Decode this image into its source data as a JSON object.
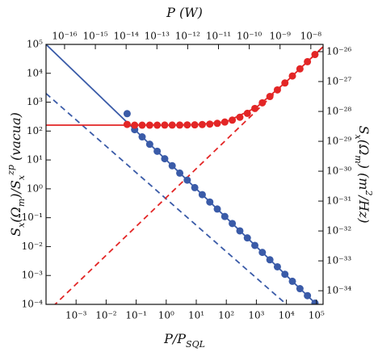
{
  "chart_data": {
    "type": "scatter",
    "log_x": true,
    "log_y": true,
    "xlabel": [
      {
        "text": "P/P"
      },
      {
        "text": "SQL",
        "shift": "sub"
      }
    ],
    "ylabel": [
      {
        "text": "S"
      },
      {
        "text": "x",
        "shift": "sub"
      },
      {
        "text": "(Ω"
      },
      {
        "text": "m",
        "shift": "sub"
      },
      {
        "text": ")/S"
      },
      {
        "text": "x",
        "shift": "sub"
      },
      {
        "text": "zp",
        "shift": "super"
      },
      {
        "text": " (vacua)"
      }
    ],
    "x2label": [
      {
        "text": "P (W)"
      }
    ],
    "y2label": [
      {
        "text": "S"
      },
      {
        "text": "x",
        "shift": "sub"
      },
      {
        "text": "(Ω"
      },
      {
        "text": "m",
        "shift": "sub"
      },
      {
        "text": ") (m"
      },
      {
        "text": "2",
        "shift": "super"
      },
      {
        "text": "/Hz)"
      }
    ],
    "xlim": [
      0.0001,
      166000
    ],
    "ylim": [
      0.0001,
      100000
    ],
    "x2lim": [
      2.5e-17,
      2.5e-08
    ],
    "y2lim": [
      3.5e-35,
      1.75e-26
    ],
    "xticks": [
      {
        "value": 0.001,
        "label": "10⁻³"
      },
      {
        "value": 0.01,
        "label": "10⁻²"
      },
      {
        "value": 0.1,
        "label": "10⁻¹"
      },
      {
        "value": 1,
        "label": "10⁰"
      },
      {
        "value": 10,
        "label": "10¹"
      },
      {
        "value": 100,
        "label": "10²"
      },
      {
        "value": 1000,
        "label": "10³"
      },
      {
        "value": 10000,
        "label": "10⁴"
      },
      {
        "value": 100000,
        "label": "10⁵"
      }
    ],
    "yticks": [
      {
        "value": 0.0001,
        "label": "10⁻⁴"
      },
      {
        "value": 0.001,
        "label": "10⁻³"
      },
      {
        "value": 0.01,
        "label": "10⁻²"
      },
      {
        "value": 0.1,
        "label": "10⁻¹"
      },
      {
        "value": 1,
        "label": "10⁰"
      },
      {
        "value": 10,
        "label": "10¹"
      },
      {
        "value": 100,
        "label": "10²"
      },
      {
        "value": 1000,
        "label": "10³"
      },
      {
        "value": 10000,
        "label": "10⁴"
      },
      {
        "value": 100000,
        "label": "10⁵"
      }
    ],
    "x2ticks": [
      {
        "value": 1e-16,
        "label": "10⁻¹⁶"
      },
      {
        "value": 1e-15,
        "label": "10⁻¹⁵"
      },
      {
        "value": 1e-14,
        "label": "10⁻¹⁴"
      },
      {
        "value": 1e-13,
        "label": "10⁻¹³"
      },
      {
        "value": 1e-12,
        "label": "10⁻¹²"
      },
      {
        "value": 1e-11,
        "label": "10⁻¹¹"
      },
      {
        "value": 1e-10,
        "label": "10⁻¹⁰"
      },
      {
        "value": 1e-09,
        "label": "10⁻⁹"
      },
      {
        "value": 1e-08,
        "label": "10⁻⁸"
      }
    ],
    "y2ticks": [
      {
        "value": 1e-34,
        "label": "10⁻³⁴"
      },
      {
        "value": 1e-33,
        "label": "10⁻³³"
      },
      {
        "value": 1e-32,
        "label": "10⁻³²"
      },
      {
        "value": 1e-31,
        "label": "10⁻³¹"
      },
      {
        "value": 1e-30,
        "label": "10⁻³⁰"
      },
      {
        "value": 1e-29,
        "label": "10⁻²⁹"
      },
      {
        "value": 1e-28,
        "label": "10⁻²⁸"
      },
      {
        "value": 1e-27,
        "label": "10⁻²⁷"
      },
      {
        "value": 1e-26,
        "label": "10⁻²⁶"
      }
    ],
    "series": [
      {
        "mode": "line",
        "dash": false,
        "color": "#3a5ba8",
        "x": [
          0.0001,
          166000
        ],
        "values": [
          100000,
          6e-05
        ]
      },
      {
        "mode": "line",
        "dash": true,
        "color": "#3a5ba8",
        "x": [
          0.0001,
          10000
        ],
        "values": [
          2000,
          0.0001
        ]
      },
      {
        "mode": "line",
        "dash": true,
        "color": "#e32626",
        "x": [
          0.0001,
          166000
        ],
        "values": [
          5e-05,
          83000
        ]
      },
      {
        "mode": "line",
        "dash": false,
        "color": "#e32626",
        "x": [
          0.0001,
          0.001,
          0.01,
          0.1,
          1,
          10,
          100,
          1000,
          10000,
          100000,
          166000
        ],
        "values": [
          160,
          160,
          160,
          160,
          160.5,
          165,
          210,
          660,
          5160,
          50160,
          83160
        ]
      },
      {
        "mode": "markers",
        "color": "#3a5ba8",
        "x": [
          0.05,
          0.089,
          0.158,
          0.282,
          0.501,
          0.891,
          1.58,
          2.82,
          5.01,
          8.91,
          15.8,
          28.2,
          50.1,
          89.1,
          158,
          282,
          501,
          891,
          1580,
          2820,
          5010,
          8910,
          15800,
          28200,
          50100,
          89100
        ],
        "values": [
          400,
          112,
          63,
          35,
          20,
          11,
          6.3,
          3.5,
          2.0,
          1.1,
          0.63,
          0.35,
          0.2,
          0.11,
          0.063,
          0.035,
          0.02,
          0.011,
          0.0063,
          0.0035,
          0.002,
          0.0011,
          0.00063,
          0.00035,
          0.0002,
          0.00011
        ]
      },
      {
        "mode": "markers",
        "color": "#e32626",
        "x": [
          0.05,
          0.089,
          0.158,
          0.282,
          0.501,
          0.891,
          1.58,
          2.82,
          5.01,
          8.91,
          15.8,
          28.2,
          50.1,
          89.1,
          158,
          282,
          501,
          891,
          1580,
          2820,
          5010,
          8910,
          15800,
          28200,
          50100,
          89100
        ],
        "values": [
          170,
          160,
          160,
          160,
          160,
          161,
          161,
          161,
          163,
          164,
          168,
          174,
          185,
          205,
          239,
          301,
          410,
          605,
          950,
          1570,
          2665,
          4615,
          8060,
          14260,
          25210,
          44710
        ]
      }
    ]
  }
}
